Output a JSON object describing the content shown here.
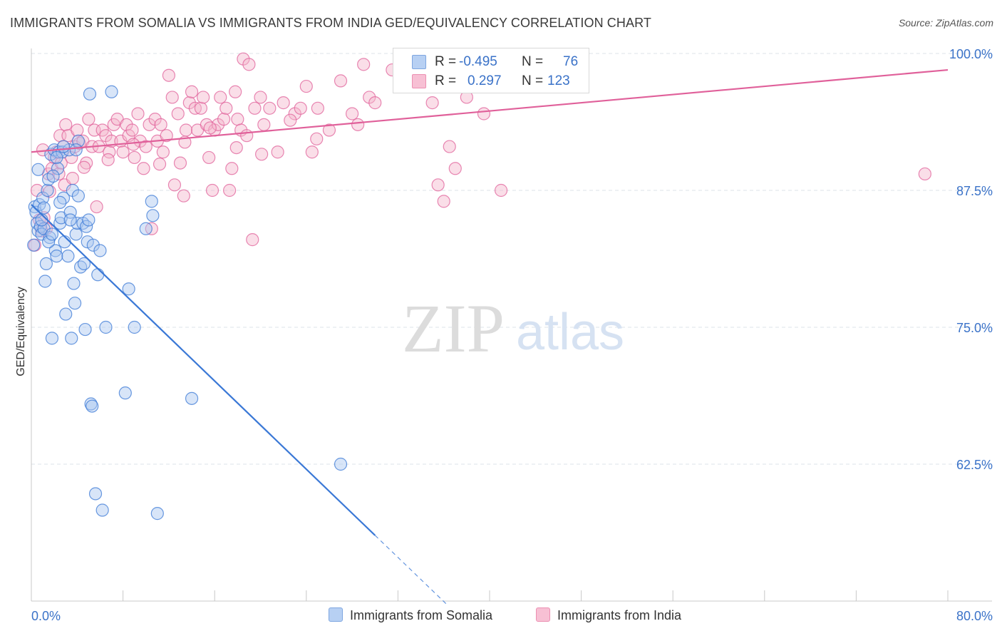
{
  "title": "IMMIGRANTS FROM SOMALIA VS IMMIGRANTS FROM INDIA GED/EQUIVALENCY CORRELATION CHART",
  "source": "Source: ZipAtlas.com",
  "watermark": {
    "zip": "ZIP",
    "atlas": "atlas"
  },
  "colors": {
    "somalia": "#3a78d6",
    "somalia_fill": "#a9c6f0",
    "india": "#e0609a",
    "india_fill": "#f5b6cc",
    "axis_label": "#3a72c8",
    "grid": "#dde3ea"
  },
  "legend": {
    "r_label": "R =",
    "n_label": "N =",
    "somalia": {
      "r": "-0.495",
      "n": "76"
    },
    "india": {
      "r": "0.297",
      "n": "123"
    }
  },
  "bottom_legend": {
    "somalia": "Immigrants from Somalia",
    "india": "Immigrants from India"
  },
  "chart_data": {
    "type": "scatter",
    "title": "IMMIGRANTS FROM SOMALIA VS IMMIGRANTS FROM INDIA GED/EQUIVALENCY CORRELATION CHART",
    "xlabel": "",
    "ylabel": "GED/Equivalency",
    "xlim": [
      0,
      80
    ],
    "ylim": [
      50,
      100
    ],
    "x_tick_labels": [
      "0.0%",
      "80.0%"
    ],
    "y_ticks": [
      62.5,
      75.0,
      87.5,
      100.0
    ],
    "y_tick_labels": [
      "62.5%",
      "75.0%",
      "87.5%",
      "100.0%"
    ],
    "grid": true,
    "series": [
      {
        "name": "Immigrants from Somalia",
        "r": -0.495,
        "n": 76,
        "trend": {
          "x0": 0,
          "y0": 86.2,
          "x1": 30.0,
          "y1": 56.0,
          "dash_to_x": 36.4
        },
        "points": [
          [
            0.2,
            82.5
          ],
          [
            0.3,
            86.0
          ],
          [
            0.4,
            85.5
          ],
          [
            0.5,
            84.5
          ],
          [
            0.6,
            83.8
          ],
          [
            0.7,
            86.2
          ],
          [
            0.8,
            84.2
          ],
          [
            0.9,
            83.5
          ],
          [
            1.0,
            86.8
          ],
          [
            1.1,
            84.0
          ],
          [
            1.2,
            79.2
          ],
          [
            1.3,
            80.8
          ],
          [
            1.4,
            87.5
          ],
          [
            1.5,
            88.5
          ],
          [
            1.6,
            83.2
          ],
          [
            1.7,
            90.8
          ],
          [
            1.8,
            74.0
          ],
          [
            2.0,
            91.2
          ],
          [
            2.1,
            82.0
          ],
          [
            2.2,
            81.5
          ],
          [
            2.3,
            89.5
          ],
          [
            2.4,
            91.0
          ],
          [
            2.5,
            84.5
          ],
          [
            2.6,
            85.0
          ],
          [
            2.7,
            91.0
          ],
          [
            2.8,
            86.8
          ],
          [
            2.9,
            82.8
          ],
          [
            3.0,
            76.2
          ],
          [
            3.2,
            81.5
          ],
          [
            3.3,
            91.2
          ],
          [
            3.4,
            85.5
          ],
          [
            3.5,
            74.0
          ],
          [
            3.6,
            87.5
          ],
          [
            3.7,
            79.0
          ],
          [
            3.8,
            77.2
          ],
          [
            3.9,
            83.5
          ],
          [
            4.0,
            84.5
          ],
          [
            4.1,
            87.0
          ],
          [
            4.3,
            80.5
          ],
          [
            4.5,
            84.5
          ],
          [
            4.6,
            80.8
          ],
          [
            4.7,
            74.8
          ],
          [
            4.8,
            84.2
          ],
          [
            4.9,
            82.8
          ],
          [
            5.0,
            84.8
          ],
          [
            5.1,
            96.3
          ],
          [
            5.2,
            68.0
          ],
          [
            5.3,
            67.8
          ],
          [
            5.4,
            82.5
          ],
          [
            5.6,
            59.8
          ],
          [
            5.8,
            79.8
          ],
          [
            6.0,
            82.0
          ],
          [
            6.2,
            58.3
          ],
          [
            6.5,
            75.0
          ],
          [
            7.0,
            96.5
          ],
          [
            8.2,
            69.0
          ],
          [
            8.5,
            78.5
          ],
          [
            9.0,
            75.0
          ],
          [
            10.0,
            84.0
          ],
          [
            10.5,
            86.5
          ],
          [
            10.6,
            85.2
          ],
          [
            11.0,
            58.0
          ],
          [
            14.0,
            68.5
          ],
          [
            27.0,
            62.5
          ],
          [
            1.9,
            88.8
          ],
          [
            2.2,
            90.5
          ],
          [
            3.4,
            84.8
          ],
          [
            4.1,
            92.0
          ],
          [
            0.9,
            84.8
          ],
          [
            1.5,
            82.8
          ],
          [
            2.8,
            91.5
          ],
          [
            3.9,
            91.2
          ],
          [
            1.1,
            85.9
          ],
          [
            0.6,
            89.4
          ],
          [
            1.8,
            83.5
          ],
          [
            2.5,
            86.4
          ]
        ]
      },
      {
        "name": "Immigrants from India",
        "r": 0.297,
        "n": 123,
        "trend": {
          "x0": 0,
          "y0": 91.0,
          "x1": 80,
          "y1": 98.5
        },
        "points": [
          [
            0.3,
            82.5
          ],
          [
            0.5,
            87.5
          ],
          [
            0.7,
            84.8
          ],
          [
            0.9,
            83.8
          ],
          [
            1.1,
            85.0
          ],
          [
            1.3,
            84.0
          ],
          [
            1.5,
            89.0
          ],
          [
            1.8,
            89.5
          ],
          [
            2.0,
            90.5
          ],
          [
            2.2,
            91.0
          ],
          [
            2.4,
            89.0
          ],
          [
            2.5,
            92.5
          ],
          [
            2.6,
            90.0
          ],
          [
            2.8,
            91.5
          ],
          [
            3.0,
            93.5
          ],
          [
            3.2,
            92.5
          ],
          [
            3.5,
            90.5
          ],
          [
            3.8,
            91.5
          ],
          [
            4.0,
            93.0
          ],
          [
            4.2,
            91.8
          ],
          [
            4.5,
            92.0
          ],
          [
            4.8,
            90.0
          ],
          [
            5.0,
            94.0
          ],
          [
            5.3,
            91.5
          ],
          [
            5.5,
            93.0
          ],
          [
            5.7,
            86.0
          ],
          [
            5.9,
            91.5
          ],
          [
            6.2,
            93.0
          ],
          [
            6.5,
            92.5
          ],
          [
            6.8,
            91.0
          ],
          [
            7.0,
            92.0
          ],
          [
            7.2,
            93.5
          ],
          [
            7.5,
            94.0
          ],
          [
            7.8,
            92.0
          ],
          [
            8.0,
            91.0
          ],
          [
            8.3,
            93.5
          ],
          [
            8.5,
            92.5
          ],
          [
            8.8,
            93.0
          ],
          [
            9.0,
            90.5
          ],
          [
            9.3,
            94.5
          ],
          [
            9.5,
            92.0
          ],
          [
            9.8,
            89.5
          ],
          [
            10.0,
            91.5
          ],
          [
            10.3,
            93.5
          ],
          [
            10.5,
            84.0
          ],
          [
            10.8,
            94.0
          ],
          [
            11.0,
            92.0
          ],
          [
            11.3,
            93.5
          ],
          [
            11.5,
            91.0
          ],
          [
            11.8,
            92.5
          ],
          [
            12.0,
            98.0
          ],
          [
            12.3,
            96.0
          ],
          [
            12.5,
            88.0
          ],
          [
            12.8,
            94.5
          ],
          [
            13.0,
            90.0
          ],
          [
            13.3,
            87.0
          ],
          [
            13.5,
            93.0
          ],
          [
            13.8,
            95.5
          ],
          [
            14.0,
            96.5
          ],
          [
            14.3,
            95.0
          ],
          [
            14.5,
            93.0
          ],
          [
            14.8,
            95.0
          ],
          [
            15.0,
            96.0
          ],
          [
            15.3,
            93.5
          ],
          [
            15.5,
            90.5
          ],
          [
            15.8,
            87.5
          ],
          [
            16.0,
            93.0
          ],
          [
            16.3,
            93.5
          ],
          [
            16.5,
            96.0
          ],
          [
            16.8,
            94.0
          ],
          [
            17.0,
            95.0
          ],
          [
            17.3,
            87.5
          ],
          [
            17.5,
            89.5
          ],
          [
            17.8,
            96.5
          ],
          [
            18.0,
            94.0
          ],
          [
            18.3,
            93.0
          ],
          [
            18.5,
            99.5
          ],
          [
            18.8,
            92.5
          ],
          [
            19.0,
            99.0
          ],
          [
            19.5,
            95.0
          ],
          [
            20.0,
            96.0
          ],
          [
            20.3,
            93.5
          ],
          [
            20.8,
            95.0
          ],
          [
            21.5,
            91.0
          ],
          [
            22.0,
            95.5
          ],
          [
            23.0,
            94.5
          ],
          [
            23.5,
            95.0
          ],
          [
            24.0,
            97.0
          ],
          [
            24.5,
            91.0
          ],
          [
            25.0,
            95.0
          ],
          [
            26.0,
            93.0
          ],
          [
            27.0,
            97.5
          ],
          [
            28.0,
            94.5
          ],
          [
            28.5,
            93.5
          ],
          [
            29.0,
            99.0
          ],
          [
            29.5,
            96.0
          ],
          [
            30.0,
            95.5
          ],
          [
            31.5,
            98.5
          ],
          [
            33.0,
            97.5
          ],
          [
            35.0,
            95.5
          ],
          [
            35.5,
            88.0
          ],
          [
            36.0,
            86.5
          ],
          [
            36.5,
            91.5
          ],
          [
            37.0,
            89.5
          ],
          [
            38.0,
            96.0
          ],
          [
            39.5,
            94.5
          ],
          [
            41.0,
            87.5
          ],
          [
            78.0,
            89.0
          ],
          [
            1.0,
            91.2
          ],
          [
            2.9,
            88.0
          ],
          [
            4.6,
            89.6
          ],
          [
            6.7,
            90.3
          ],
          [
            8.9,
            91.7
          ],
          [
            11.2,
            89.9
          ],
          [
            13.4,
            91.9
          ],
          [
            15.6,
            93.2
          ],
          [
            17.9,
            91.4
          ],
          [
            20.1,
            90.8
          ],
          [
            22.6,
            93.9
          ],
          [
            24.9,
            92.2
          ],
          [
            1.6,
            87.4
          ],
          [
            3.6,
            88.6
          ],
          [
            19.3,
            83.0
          ]
        ]
      }
    ]
  }
}
